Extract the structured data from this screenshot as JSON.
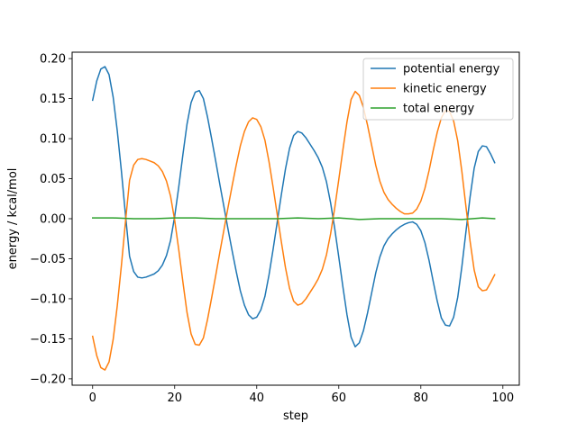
{
  "chart_data": {
    "type": "line",
    "title": "",
    "xlabel": "step",
    "ylabel": "energy / kcal/mol",
    "xlim": [
      -5,
      104
    ],
    "ylim": [
      -0.208,
      0.208
    ],
    "xticks": [
      0,
      20,
      40,
      60,
      80,
      100
    ],
    "yticks": [
      -0.2,
      -0.15,
      -0.1,
      -0.05,
      0.0,
      0.05,
      0.1,
      0.15,
      0.2
    ],
    "ytick_labels": [
      "−0.20",
      "−0.15",
      "−0.10",
      "−0.05",
      "0.00",
      "0.05",
      "0.10",
      "0.15",
      "0.20"
    ],
    "grid": false,
    "legend_position": "upper right",
    "series": [
      {
        "name": "potential energy",
        "color": "#1f77b4",
        "points": [
          [
            0,
            0.148
          ],
          [
            1,
            0.172
          ],
          [
            2,
            0.187
          ],
          [
            3,
            0.19
          ],
          [
            4,
            0.18
          ],
          [
            5,
            0.152
          ],
          [
            6,
            0.11
          ],
          [
            7,
            0.06
          ],
          [
            8,
            0.005
          ],
          [
            9,
            -0.047
          ],
          [
            10,
            -0.066
          ],
          [
            11,
            -0.073
          ],
          [
            12,
            -0.074
          ],
          [
            13,
            -0.073
          ],
          [
            14,
            -0.071
          ],
          [
            15,
            -0.069
          ],
          [
            16,
            -0.065
          ],
          [
            17,
            -0.058
          ],
          [
            18,
            -0.046
          ],
          [
            19,
            -0.027
          ],
          [
            20,
            0.003
          ],
          [
            21,
            0.04
          ],
          [
            22,
            0.08
          ],
          [
            23,
            0.118
          ],
          [
            24,
            0.145
          ],
          [
            25,
            0.158
          ],
          [
            26,
            0.16
          ],
          [
            27,
            0.15
          ],
          [
            28,
            0.127
          ],
          [
            29,
            0.1
          ],
          [
            30,
            0.072
          ],
          [
            31,
            0.043
          ],
          [
            32,
            0.015
          ],
          [
            33,
            -0.013
          ],
          [
            34,
            -0.04
          ],
          [
            35,
            -0.066
          ],
          [
            36,
            -0.09
          ],
          [
            37,
            -0.108
          ],
          [
            38,
            -0.12
          ],
          [
            39,
            -0.125
          ],
          [
            40,
            -0.123
          ],
          [
            41,
            -0.114
          ],
          [
            42,
            -0.097
          ],
          [
            43,
            -0.07
          ],
          [
            44,
            -0.038
          ],
          [
            45,
            -0.004
          ],
          [
            46,
            0.03
          ],
          [
            47,
            0.062
          ],
          [
            48,
            0.088
          ],
          [
            49,
            0.104
          ],
          [
            50,
            0.109
          ],
          [
            51,
            0.107
          ],
          [
            52,
            0.101
          ],
          [
            53,
            0.093
          ],
          [
            54,
            0.085
          ],
          [
            55,
            0.076
          ],
          [
            56,
            0.064
          ],
          [
            57,
            0.046
          ],
          [
            58,
            0.02
          ],
          [
            59,
            -0.012
          ],
          [
            60,
            -0.048
          ],
          [
            61,
            -0.085
          ],
          [
            62,
            -0.12
          ],
          [
            63,
            -0.148
          ],
          [
            64,
            -0.16
          ],
          [
            65,
            -0.155
          ],
          [
            66,
            -0.14
          ],
          [
            67,
            -0.118
          ],
          [
            68,
            -0.093
          ],
          [
            69,
            -0.068
          ],
          [
            70,
            -0.048
          ],
          [
            71,
            -0.034
          ],
          [
            72,
            -0.025
          ],
          [
            73,
            -0.019
          ],
          [
            74,
            -0.014
          ],
          [
            75,
            -0.01
          ],
          [
            76,
            -0.007
          ],
          [
            77,
            -0.005
          ],
          [
            78,
            -0.004
          ],
          [
            79,
            -0.007
          ],
          [
            80,
            -0.015
          ],
          [
            81,
            -0.03
          ],
          [
            82,
            -0.052
          ],
          [
            83,
            -0.078
          ],
          [
            84,
            -0.103
          ],
          [
            85,
            -0.124
          ],
          [
            86,
            -0.133
          ],
          [
            87,
            -0.134
          ],
          [
            88,
            -0.123
          ],
          [
            89,
            -0.098
          ],
          [
            90,
            -0.06
          ],
          [
            91,
            -0.016
          ],
          [
            92,
            0.027
          ],
          [
            93,
            0.063
          ],
          [
            94,
            0.084
          ],
          [
            95,
            0.091
          ],
          [
            96,
            0.09
          ],
          [
            97,
            0.081
          ],
          [
            98,
            0.07
          ]
        ]
      },
      {
        "name": "kinetic energy",
        "color": "#ff7f0e",
        "points": [
          [
            0,
            -0.147
          ],
          [
            1,
            -0.171
          ],
          [
            2,
            -0.186
          ],
          [
            3,
            -0.189
          ],
          [
            4,
            -0.179
          ],
          [
            5,
            -0.151
          ],
          [
            6,
            -0.109
          ],
          [
            7,
            -0.059
          ],
          [
            8,
            -0.004
          ],
          [
            9,
            0.048
          ],
          [
            10,
            0.067
          ],
          [
            11,
            0.074
          ],
          [
            12,
            0.075
          ],
          [
            13,
            0.074
          ],
          [
            14,
            0.072
          ],
          [
            15,
            0.07
          ],
          [
            16,
            0.066
          ],
          [
            17,
            0.059
          ],
          [
            18,
            0.047
          ],
          [
            19,
            0.028
          ],
          [
            20,
            -0.002
          ],
          [
            21,
            -0.039
          ],
          [
            22,
            -0.079
          ],
          [
            23,
            -0.117
          ],
          [
            24,
            -0.144
          ],
          [
            25,
            -0.157
          ],
          [
            26,
            -0.158
          ],
          [
            27,
            -0.149
          ],
          [
            28,
            -0.126
          ],
          [
            29,
            -0.099
          ],
          [
            30,
            -0.071
          ],
          [
            31,
            -0.042
          ],
          [
            32,
            -0.014
          ],
          [
            33,
            0.014
          ],
          [
            34,
            0.041
          ],
          [
            35,
            0.067
          ],
          [
            36,
            0.091
          ],
          [
            37,
            0.109
          ],
          [
            38,
            0.121
          ],
          [
            39,
            0.126
          ],
          [
            40,
            0.124
          ],
          [
            41,
            0.115
          ],
          [
            42,
            0.098
          ],
          [
            43,
            0.071
          ],
          [
            44,
            0.039
          ],
          [
            45,
            0.005
          ],
          [
            46,
            -0.029
          ],
          [
            47,
            -0.061
          ],
          [
            48,
            -0.087
          ],
          [
            49,
            -0.103
          ],
          [
            50,
            -0.108
          ],
          [
            51,
            -0.106
          ],
          [
            52,
            -0.1
          ],
          [
            53,
            -0.092
          ],
          [
            54,
            -0.084
          ],
          [
            55,
            -0.075
          ],
          [
            56,
            -0.063
          ],
          [
            57,
            -0.045
          ],
          [
            58,
            -0.019
          ],
          [
            59,
            0.013
          ],
          [
            60,
            0.049
          ],
          [
            61,
            0.086
          ],
          [
            62,
            0.121
          ],
          [
            63,
            0.149
          ],
          [
            64,
            0.159
          ],
          [
            65,
            0.154
          ],
          [
            66,
            0.139
          ],
          [
            67,
            0.117
          ],
          [
            68,
            0.092
          ],
          [
            69,
            0.067
          ],
          [
            70,
            0.047
          ],
          [
            71,
            0.033
          ],
          [
            72,
            0.024
          ],
          [
            73,
            0.018
          ],
          [
            74,
            0.013
          ],
          [
            75,
            0.009
          ],
          [
            76,
            0.006
          ],
          [
            77,
            0.006
          ],
          [
            78,
            0.007
          ],
          [
            79,
            0.012
          ],
          [
            80,
            0.022
          ],
          [
            81,
            0.038
          ],
          [
            82,
            0.06
          ],
          [
            83,
            0.085
          ],
          [
            84,
            0.108
          ],
          [
            85,
            0.126
          ],
          [
            86,
            0.135
          ],
          [
            87,
            0.134
          ],
          [
            88,
            0.122
          ],
          [
            89,
            0.097
          ],
          [
            90,
            0.059
          ],
          [
            91,
            0.015
          ],
          [
            92,
            -0.028
          ],
          [
            93,
            -0.064
          ],
          [
            94,
            -0.085
          ],
          [
            95,
            -0.09
          ],
          [
            96,
            -0.089
          ],
          [
            97,
            -0.08
          ],
          [
            98,
            -0.07
          ]
        ]
      },
      {
        "name": "total energy",
        "color": "#2ca02c",
        "points": [
          [
            0,
            0.001
          ],
          [
            5,
            0.001
          ],
          [
            10,
            0.0
          ],
          [
            15,
            0.0
          ],
          [
            20,
            0.001
          ],
          [
            25,
            0.001
          ],
          [
            30,
            0.0
          ],
          [
            35,
            0.0
          ],
          [
            40,
            0.0
          ],
          [
            45,
            0.0
          ],
          [
            50,
            0.001
          ],
          [
            55,
            0.0
          ],
          [
            60,
            0.001
          ],
          [
            65,
            -0.001
          ],
          [
            70,
            0.0
          ],
          [
            75,
            0.0
          ],
          [
            80,
            0.0
          ],
          [
            85,
            0.0
          ],
          [
            90,
            -0.001
          ],
          [
            95,
            0.001
          ],
          [
            98,
            0.0
          ]
        ]
      }
    ]
  }
}
